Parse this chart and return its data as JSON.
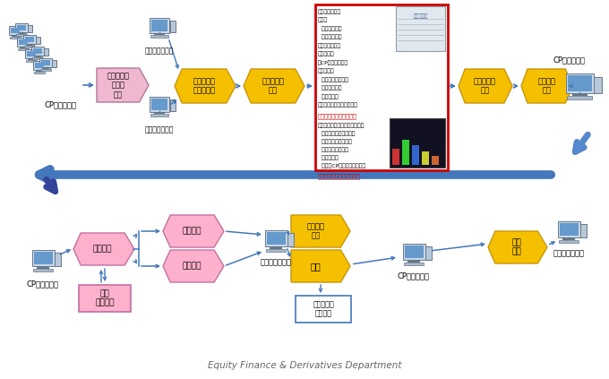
{
  "bg_color": "#ffffff",
  "title_bottom": "Equity Finance & Derivatives Department",
  "top_flow": {
    "cp_trader_label": "CPトレーダー",
    "our_trader_label1": "当社トレーダー",
    "our_trader_label2": "当社トレーダー",
    "box1": "リクエスト\nコード\n株数",
    "box2": "リクエスト\nの内容確認",
    "box3": "銘柄の状況\n確認",
    "box4": "貸出内容の\n決定",
    "box5": "当社条件\n提示",
    "cp_trader_right": "CPトレーダー",
    "red_box_lines": [
      "・貸出可能残高",
      "・貼込",
      "  ・一般本担保",
      "  ・制度本担保",
      "・顢垢条件確認",
      "・貸出状況",
      "・CP側の貸出割合",
      "・靴物情報",
      "  ・信用線（東証）",
      "  ・前日成立状",
      "  ・現在残高",
      "・コーポレートアクション"
    ],
    "red_box_link1": "＞ここで貸出株数の決定",
    "red_box_lines2": [
      "・レンディングマーケット状況",
      "  ・当社貸出レート状況",
      "  ・前日の約定レート",
      "  ・市場全体の余力",
      "  ・当社余力",
      "  ・他のCPからのリクエスト"
    ],
    "red_box_link2": "＞ここで貸出レートの決定"
  },
  "bottom_flow": {
    "cp_trader_label": "CPトレーダー",
    "box1": "条件確認",
    "box_customer": "顧客\n条件交渉",
    "box2": "約定意思",
    "box3": "条件交渉",
    "our_trader_mid": "当社トレーダー",
    "box4": "貸出約定\n連絡",
    "box5": "交渉",
    "box6": "準筐幅大は\n上届確認",
    "cp_trader_right": "CPトレーダー",
    "our_trader_right": "当社トレーダー",
    "box7": "約定\n連絡"
  },
  "colors": {
    "yellow": "#f5c000",
    "yellow_edge": "#c8960a",
    "pink": "#ffb0cc",
    "pink_edge": "#c070a0",
    "red_border": "#cc0000",
    "blue": "#4477bb",
    "text": "#000000",
    "text_red": "#cc0000"
  }
}
